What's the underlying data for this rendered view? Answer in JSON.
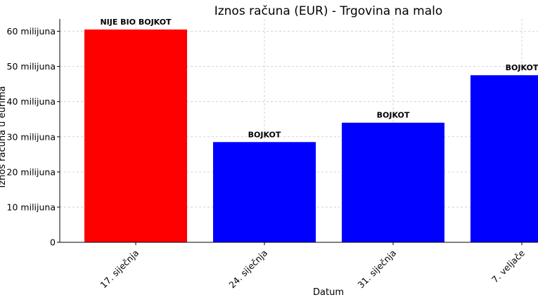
{
  "chart_data": {
    "type": "bar",
    "title": "Iznos računa (EUR) - Trgovina na malo",
    "xlabel": "Datum",
    "ylabel": "Iznos računa u eurima",
    "categories": [
      "17. siječnja",
      "24. siječnja",
      "31. siječnja",
      "7. veljače"
    ],
    "values": [
      60500000,
      28500000,
      34000000,
      47500000
    ],
    "bar_labels": [
      "NIJE BIO BOJKOT",
      "BOJKOT",
      "BOJKOT",
      "BOJKOT"
    ],
    "bar_colors": [
      "#ff0000",
      "#0000ff",
      "#0000ff",
      "#0000ff"
    ],
    "ylim": [
      0,
      63500000
    ],
    "yticks": [
      0,
      10000000,
      20000000,
      30000000,
      40000000,
      50000000,
      60000000
    ],
    "ytick_labels": [
      "0",
      "10 milijuna",
      "20 milijuna",
      "30 milijuna",
      "40 milijuna",
      "50 milijuna",
      "60 milijuna"
    ],
    "grid": true,
    "legend": "none"
  }
}
